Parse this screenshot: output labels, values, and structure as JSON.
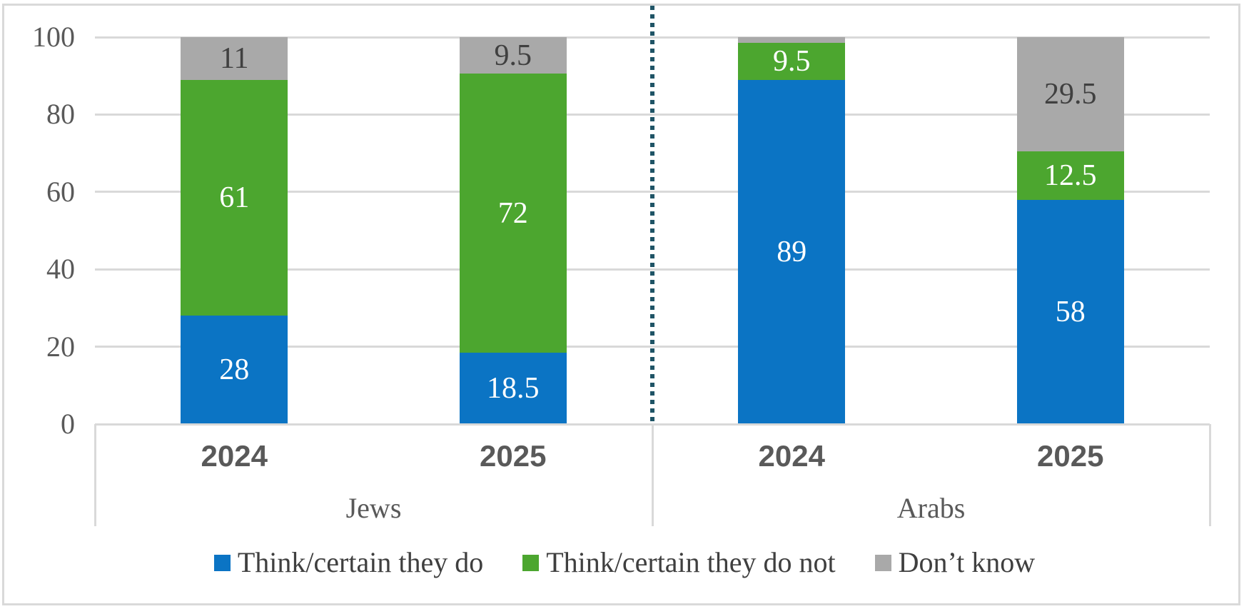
{
  "chart_data": {
    "type": "bar",
    "stacked": true,
    "orientation": "vertical",
    "title": "",
    "xlabel": "",
    "ylabel": "",
    "ylim": [
      0,
      100
    ],
    "y_ticks": [
      "0",
      "20",
      "40",
      "60",
      "80",
      "100"
    ],
    "grid": true,
    "legend_position": "bottom",
    "group_labels": [
      "Jews",
      "Arabs"
    ],
    "categories": [
      "2024",
      "2025",
      "2024",
      "2025"
    ],
    "category_groups": [
      0,
      0,
      1,
      1
    ],
    "series": [
      {
        "name": "Think/certain they do",
        "color": "#0b74c4",
        "label_color": "#ffffff",
        "values": [
          28,
          18.5,
          89,
          58
        ],
        "labels": [
          "28",
          "18.5",
          "89",
          "58"
        ]
      },
      {
        "name": "Think/certain they do not",
        "color": "#4ca62f",
        "label_color": "#ffffff",
        "values": [
          61,
          72,
          9.5,
          12.5
        ],
        "labels": [
          "61",
          "72",
          "9.5",
          "12.5"
        ]
      },
      {
        "name": "Don’t know",
        "color": "#a9a9a9",
        "label_color": "#404040",
        "values": [
          11,
          9.5,
          1.5,
          29.5
        ],
        "labels": [
          "11",
          "9.5",
          "",
          "29.5"
        ]
      }
    ],
    "group_separator": {
      "style": "dotted",
      "color": "#1f5466"
    }
  },
  "colors": {
    "gridline": "#d9d9d9",
    "frame_border": "#d9d9d9",
    "axis_tick_text": "#595959",
    "category_text": "#595959",
    "group_text": "#595959",
    "legend_text": "#3f3f3f"
  }
}
